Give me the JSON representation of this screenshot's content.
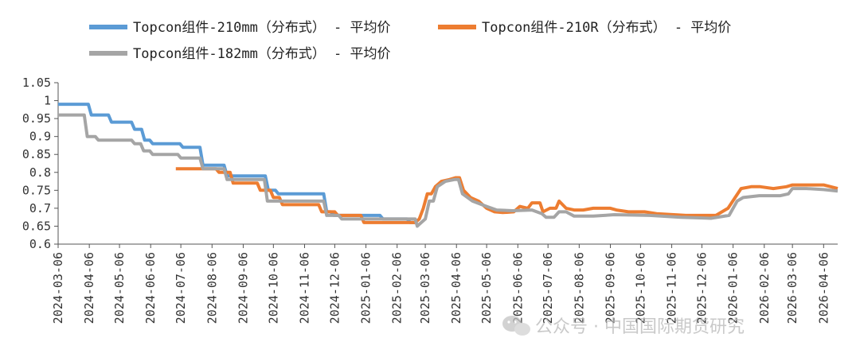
{
  "chart_data": {
    "type": "line",
    "title": "",
    "xlabel": "",
    "ylabel": "",
    "ylim": [
      0.6,
      1.05
    ],
    "yticks": [
      "0.6",
      "0.65",
      "0.7",
      "0.75",
      "0.8",
      "0.85",
      "0.9",
      "0.95",
      "1",
      "1.05"
    ],
    "xlim": [
      "2024-03-06",
      "2026-04-20"
    ],
    "xticks": [
      "2024-03-06",
      "2024-04-06",
      "2024-05-06",
      "2024-06-06",
      "2024-07-06",
      "2024-08-06",
      "2024-09-06",
      "2024-10-06",
      "2024-11-06",
      "2024-12-06",
      "2025-01-06",
      "2025-02-06",
      "2025-03-06",
      "2025-04-06",
      "2025-05-06",
      "2025-06-06",
      "2025-07-06",
      "2025-08-06",
      "2025-09-06",
      "2025-10-06",
      "2025-11-06",
      "2025-12-06",
      "2026-01-06",
      "2026-02-06",
      "2026-03-06",
      "2026-04-06"
    ],
    "grid": false,
    "legend": "top",
    "series": [
      {
        "name": "Topcon组件-210mm（分布式） - 平均价",
        "color": "#5b9bd5",
        "points": [
          [
            "2024-03-06",
            0.99
          ],
          [
            "2024-04-05",
            0.99
          ],
          [
            "2024-04-08",
            0.96
          ],
          [
            "2024-04-25",
            0.96
          ],
          [
            "2024-04-28",
            0.94
          ],
          [
            "2024-05-18",
            0.94
          ],
          [
            "2024-05-21",
            0.92
          ],
          [
            "2024-05-28",
            0.92
          ],
          [
            "2024-05-31",
            0.89
          ],
          [
            "2024-06-05",
            0.89
          ],
          [
            "2024-06-08",
            0.88
          ],
          [
            "2024-07-05",
            0.88
          ],
          [
            "2024-07-08",
            0.87
          ],
          [
            "2024-07-25",
            0.87
          ],
          [
            "2024-07-28",
            0.82
          ],
          [
            "2024-08-18",
            0.82
          ],
          [
            "2024-08-21",
            0.79
          ],
          [
            "2024-09-28",
            0.79
          ],
          [
            "2024-10-01",
            0.75
          ],
          [
            "2024-10-08",
            0.75
          ],
          [
            "2024-10-11",
            0.74
          ],
          [
            "2024-11-25",
            0.74
          ],
          [
            "2024-11-28",
            0.69
          ],
          [
            "2024-12-02",
            0.69
          ],
          [
            "2024-12-05",
            0.68
          ],
          [
            "2025-01-20",
            0.68
          ],
          [
            "2025-01-23",
            0.67
          ],
          [
            "2025-02-16",
            0.67
          ],
          [
            "2025-02-19",
            0.66
          ],
          [
            "2025-02-24",
            0.66
          ]
        ]
      },
      {
        "name": "Topcon组件-210R（分布式） - 平均价",
        "color": "#ed7d31",
        "points": [
          [
            "2024-07-01",
            0.81
          ],
          [
            "2024-07-25",
            0.81
          ],
          [
            "2024-07-28",
            0.81
          ],
          [
            "2024-08-10",
            0.81
          ],
          [
            "2024-08-13",
            0.8
          ],
          [
            "2024-08-24",
            0.8
          ],
          [
            "2024-08-27",
            0.77
          ],
          [
            "2024-09-20",
            0.77
          ],
          [
            "2024-09-23",
            0.75
          ],
          [
            "2024-10-03",
            0.75
          ],
          [
            "2024-10-06",
            0.73
          ],
          [
            "2024-10-12",
            0.73
          ],
          [
            "2024-10-15",
            0.71
          ],
          [
            "2024-11-20",
            0.71
          ],
          [
            "2024-11-23",
            0.69
          ],
          [
            "2024-12-06",
            0.69
          ],
          [
            "2024-12-09",
            0.68
          ],
          [
            "2025-01-01",
            0.68
          ],
          [
            "2025-01-04",
            0.66
          ],
          [
            "2025-02-24",
            0.66
          ],
          [
            "2025-02-28",
            0.67
          ],
          [
            "2025-03-04",
            0.7
          ],
          [
            "2025-03-08",
            0.74
          ],
          [
            "2025-03-12",
            0.74
          ],
          [
            "2025-03-16",
            0.76
          ],
          [
            "2025-03-22",
            0.775
          ],
          [
            "2025-03-30",
            0.78
          ],
          [
            "2025-04-05",
            0.785
          ],
          [
            "2025-04-09",
            0.785
          ],
          [
            "2025-04-13",
            0.75
          ],
          [
            "2025-04-20",
            0.73
          ],
          [
            "2025-04-28",
            0.72
          ],
          [
            "2025-05-06",
            0.7
          ],
          [
            "2025-05-14",
            0.69
          ],
          [
            "2025-05-22",
            0.688
          ],
          [
            "2025-06-02",
            0.69
          ],
          [
            "2025-06-08",
            0.705
          ],
          [
            "2025-06-16",
            0.7
          ],
          [
            "2025-06-20",
            0.715
          ],
          [
            "2025-06-28",
            0.715
          ],
          [
            "2025-07-01",
            0.69
          ],
          [
            "2025-07-08",
            0.7
          ],
          [
            "2025-07-14",
            0.7
          ],
          [
            "2025-07-17",
            0.72
          ],
          [
            "2025-07-24",
            0.7
          ],
          [
            "2025-08-01",
            0.695
          ],
          [
            "2025-08-10",
            0.695
          ],
          [
            "2025-08-20",
            0.7
          ],
          [
            "2025-09-06",
            0.7
          ],
          [
            "2025-09-12",
            0.695
          ],
          [
            "2025-09-24",
            0.69
          ],
          [
            "2025-10-10",
            0.69
          ],
          [
            "2025-10-22",
            0.685
          ],
          [
            "2025-11-20",
            0.68
          ],
          [
            "2025-12-20",
            0.68
          ],
          [
            "2026-01-01",
            0.7
          ],
          [
            "2026-01-08",
            0.73
          ],
          [
            "2026-01-14",
            0.755
          ],
          [
            "2026-01-24",
            0.76
          ],
          [
            "2026-02-02",
            0.76
          ],
          [
            "2026-02-15",
            0.755
          ],
          [
            "2026-02-28",
            0.76
          ],
          [
            "2026-03-06",
            0.765
          ],
          [
            "2026-03-20",
            0.765
          ],
          [
            "2026-04-06",
            0.765
          ],
          [
            "2026-04-20",
            0.755
          ]
        ]
      },
      {
        "name": "Topcon组件-182mm（分布式） - 平均价",
        "color": "#a5a5a5",
        "points": [
          [
            "2024-03-06",
            0.96
          ],
          [
            "2024-04-01",
            0.96
          ],
          [
            "2024-04-04",
            0.9
          ],
          [
            "2024-04-12",
            0.9
          ],
          [
            "2024-04-15",
            0.89
          ],
          [
            "2024-05-18",
            0.89
          ],
          [
            "2024-05-21",
            0.88
          ],
          [
            "2024-05-27",
            0.88
          ],
          [
            "2024-05-30",
            0.86
          ],
          [
            "2024-06-05",
            0.86
          ],
          [
            "2024-06-08",
            0.85
          ],
          [
            "2024-07-03",
            0.85
          ],
          [
            "2024-07-06",
            0.84
          ],
          [
            "2024-07-25",
            0.84
          ],
          [
            "2024-07-28",
            0.81
          ],
          [
            "2024-08-18",
            0.81
          ],
          [
            "2024-08-21",
            0.78
          ],
          [
            "2024-09-27",
            0.78
          ],
          [
            "2024-09-30",
            0.72
          ],
          [
            "2024-11-25",
            0.72
          ],
          [
            "2024-11-28",
            0.68
          ],
          [
            "2024-12-10",
            0.68
          ],
          [
            "2024-12-13",
            0.67
          ],
          [
            "2025-02-24",
            0.67
          ],
          [
            "2025-02-26",
            0.65
          ],
          [
            "2025-03-02",
            0.66
          ],
          [
            "2025-03-06",
            0.67
          ],
          [
            "2025-03-10",
            0.72
          ],
          [
            "2025-03-14",
            0.72
          ],
          [
            "2025-03-18",
            0.76
          ],
          [
            "2025-03-26",
            0.775
          ],
          [
            "2025-04-04",
            0.78
          ],
          [
            "2025-04-08",
            0.78
          ],
          [
            "2025-04-12",
            0.74
          ],
          [
            "2025-04-22",
            0.72
          ],
          [
            "2025-05-06",
            0.705
          ],
          [
            "2025-05-16",
            0.695
          ],
          [
            "2025-06-01",
            0.693
          ],
          [
            "2025-06-20",
            0.695
          ],
          [
            "2025-06-30",
            0.685
          ],
          [
            "2025-07-04",
            0.675
          ],
          [
            "2025-07-12",
            0.675
          ],
          [
            "2025-07-17",
            0.69
          ],
          [
            "2025-07-24",
            0.69
          ],
          [
            "2025-08-01",
            0.678
          ],
          [
            "2025-08-20",
            0.678
          ],
          [
            "2025-09-10",
            0.682
          ],
          [
            "2025-10-15",
            0.68
          ],
          [
            "2025-11-15",
            0.675
          ],
          [
            "2025-12-15",
            0.672
          ],
          [
            "2026-01-02",
            0.68
          ],
          [
            "2026-01-10",
            0.72
          ],
          [
            "2026-01-16",
            0.73
          ],
          [
            "2026-02-01",
            0.735
          ],
          [
            "2026-02-22",
            0.735
          ],
          [
            "2026-03-02",
            0.74
          ],
          [
            "2026-03-06",
            0.755
          ],
          [
            "2026-03-20",
            0.755
          ],
          [
            "2026-04-06",
            0.752
          ],
          [
            "2026-04-20",
            0.748
          ]
        ]
      }
    ],
    "watermark": "公众号 · 中国国际期货研究"
  }
}
